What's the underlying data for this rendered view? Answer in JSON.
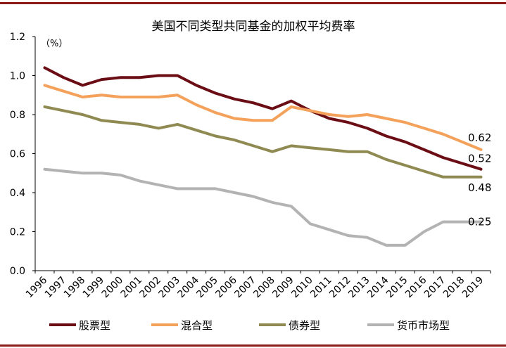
{
  "chart_data": {
    "type": "line",
    "title": "美国不同类型共同基金的加权平均费率",
    "unit_label": "（%）",
    "xlabel": "",
    "ylabel": "",
    "ylim": [
      0,
      1.2
    ],
    "yticks": [
      "0.0",
      "0.2",
      "0.4",
      "0.6",
      "0.8",
      "1.0",
      "1.2"
    ],
    "ytick_values": [
      0,
      0.2,
      0.4,
      0.6,
      0.8,
      1.0,
      1.2
    ],
    "x": [
      "1996",
      "1997",
      "1998",
      "1999",
      "2000",
      "2001",
      "2002",
      "2003",
      "2004",
      "2005",
      "2006",
      "2007",
      "2008",
      "2009",
      "2010",
      "2011",
      "2012",
      "2013",
      "2014",
      "2015",
      "2016",
      "2017",
      "2018",
      "2019"
    ],
    "grid": false,
    "legend_position": "bottom",
    "series": [
      {
        "name": "股票型",
        "color": "#6b0d14",
        "values": [
          1.04,
          0.99,
          0.95,
          0.98,
          0.99,
          0.99,
          1.0,
          1.0,
          0.95,
          0.91,
          0.88,
          0.86,
          0.83,
          0.87,
          0.82,
          0.78,
          0.76,
          0.73,
          0.69,
          0.66,
          0.62,
          0.58,
          0.55,
          0.52
        ],
        "end_label": "0.52"
      },
      {
        "name": "混合型",
        "color": "#f4a25b",
        "values": [
          0.95,
          0.92,
          0.89,
          0.9,
          0.89,
          0.89,
          0.89,
          0.9,
          0.85,
          0.81,
          0.78,
          0.77,
          0.77,
          0.84,
          0.82,
          0.8,
          0.79,
          0.8,
          0.78,
          0.76,
          0.73,
          0.7,
          0.66,
          0.62
        ],
        "end_label": "0.62"
      },
      {
        "name": "债券型",
        "color": "#8f8a52",
        "values": [
          0.84,
          0.82,
          0.8,
          0.77,
          0.76,
          0.75,
          0.73,
          0.75,
          0.72,
          0.69,
          0.67,
          0.64,
          0.61,
          0.64,
          0.63,
          0.62,
          0.61,
          0.61,
          0.57,
          0.54,
          0.51,
          0.48,
          0.48,
          0.48
        ],
        "end_label": "0.48"
      },
      {
        "name": "货币市场型",
        "color": "#b3b3b3",
        "values": [
          0.52,
          0.51,
          0.5,
          0.5,
          0.49,
          0.46,
          0.44,
          0.42,
          0.42,
          0.42,
          0.4,
          0.38,
          0.35,
          0.33,
          0.24,
          0.21,
          0.18,
          0.17,
          0.13,
          0.13,
          0.2,
          0.25,
          0.25,
          0.25
        ],
        "end_label": "0.25"
      }
    ]
  }
}
